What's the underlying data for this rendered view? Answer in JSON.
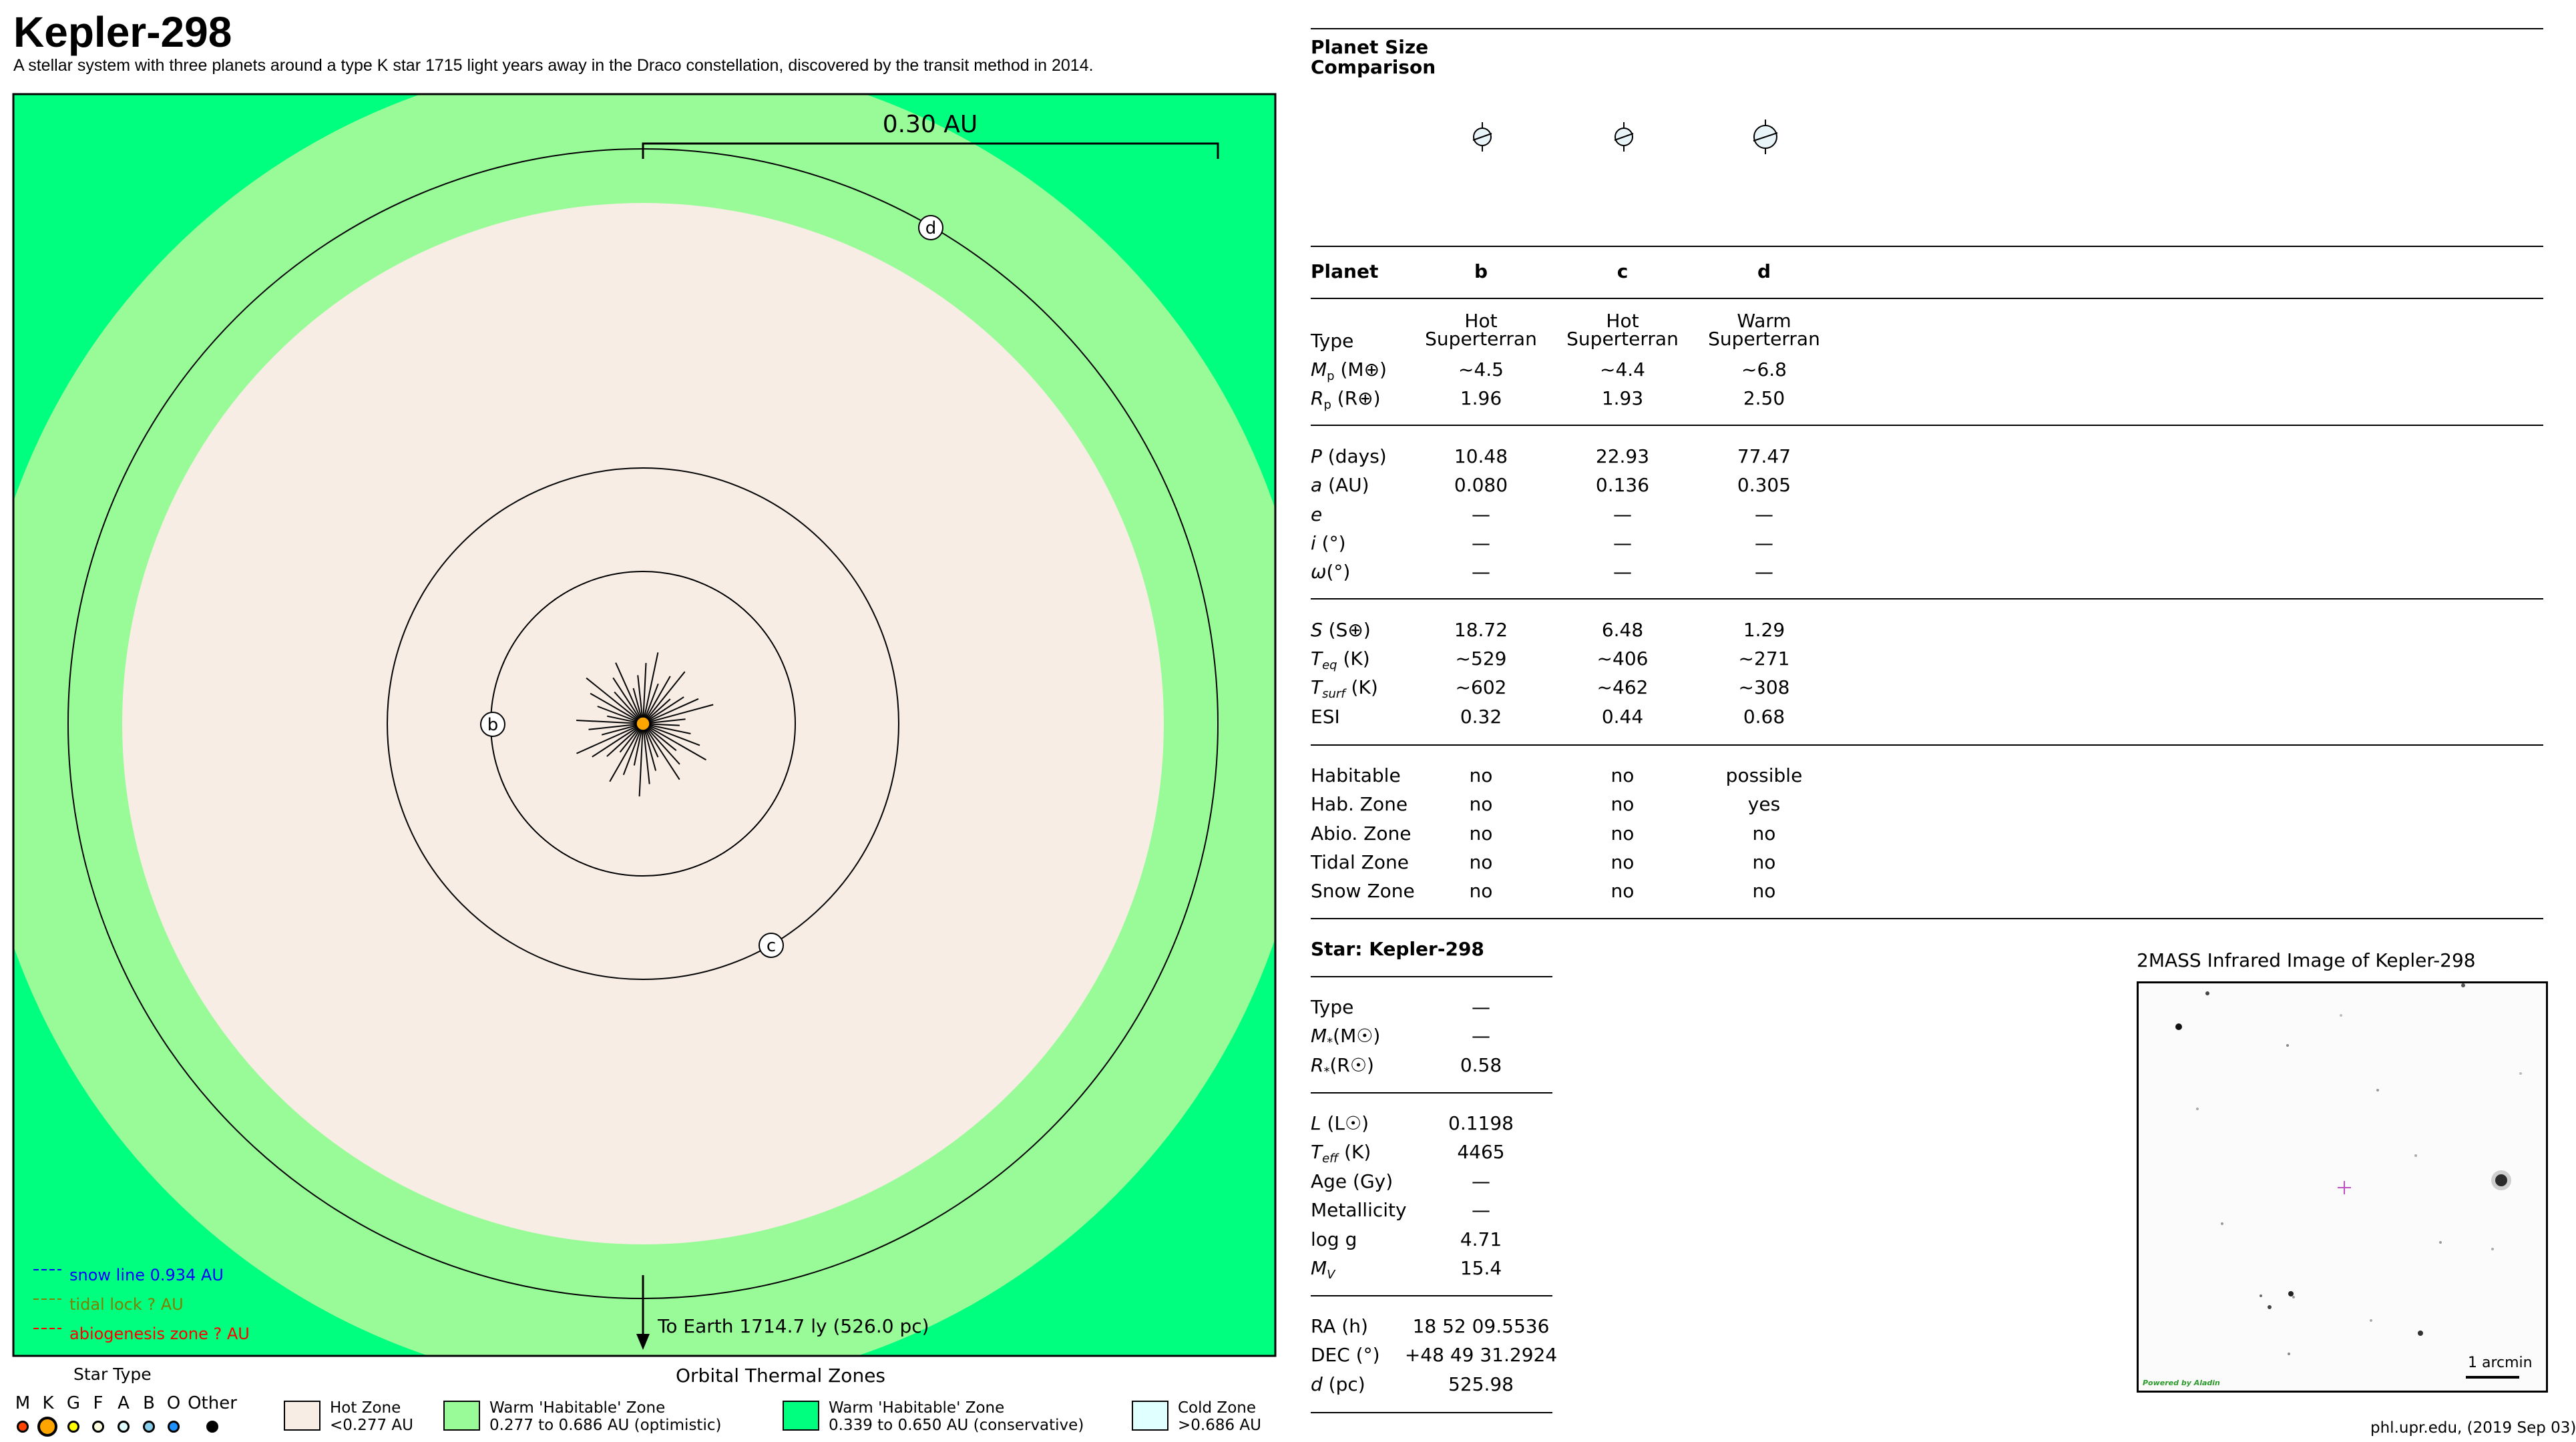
{
  "title": "Kepler-298",
  "subtitle": "A stellar system with three planets around a type K star 1715 light years away in the Draco constellation, discovered by the transit method in 2014.",
  "orbit_diagram": {
    "scale_label": "0.30 AU",
    "earth_direction": "To Earth 1714.7 ly (526.0 pc)",
    "planets": [
      {
        "label": "b",
        "a_au": 0.08
      },
      {
        "label": "c",
        "a_au": 0.136
      },
      {
        "label": "d",
        "a_au": 0.305
      }
    ],
    "lines_legend": [
      {
        "label": "snow line 0.934 AU",
        "color": "#0000ff"
      },
      {
        "label": "tidal lock ? AU",
        "color": "#808000"
      },
      {
        "label": "abiogenesis zone ? AU",
        "color": "#ff0000"
      }
    ],
    "colors": {
      "hot": "#f8ede4",
      "optimistic": "#98fb98",
      "conservative": "#00ff7f",
      "cold": "#e0ffff",
      "star": "#ffa500"
    }
  },
  "star_type_legend": {
    "title": "Star Type",
    "types": [
      {
        "label": "M",
        "color": "#ff4500"
      },
      {
        "label": "K",
        "color": "#ffa500",
        "selected": true
      },
      {
        "label": "G",
        "color": "#ffff00"
      },
      {
        "label": "F",
        "color": "#ffffe0"
      },
      {
        "label": "A",
        "color": "#e0ffff"
      },
      {
        "label": "B",
        "color": "#87ceeb"
      },
      {
        "label": "O",
        "color": "#1e90ff"
      },
      {
        "label": "Other",
        "color": "#000000"
      }
    ]
  },
  "zones_legend": {
    "title": "Orbital Thermal Zones",
    "zones": [
      {
        "name": "Hot Zone",
        "range": "<0.277 AU",
        "color": "#f8ede4"
      },
      {
        "name": "Warm 'Habitable' Zone",
        "range": "0.277 to 0.686 AU (optimistic)",
        "color": "#98fb98"
      },
      {
        "name": "Warm 'Habitable' Zone",
        "range": "0.339 to 0.650 AU (conservative)",
        "color": "#00ff7f"
      },
      {
        "name": "Cold Zone",
        "range": ">0.686 AU",
        "color": "#e0ffff"
      }
    ]
  },
  "size_comparison": {
    "title_line1": "Planet Size",
    "title_line2": "Comparison",
    "planet_radii": [
      1.96,
      1.93,
      2.5
    ]
  },
  "planet_table": {
    "header": {
      "label": "Planet",
      "cols": [
        "b",
        "c",
        "d"
      ]
    },
    "type": {
      "label": "Type",
      "line1": [
        "Hot",
        "Hot",
        "Warm"
      ],
      "line2": [
        "Superterran",
        "Superterran",
        "Superterran"
      ]
    },
    "mass": {
      "sym": "M",
      "sub": "p",
      "unit": " (M⊕)",
      "values": [
        "~4.5",
        "~4.4",
        "~6.8"
      ]
    },
    "radius": {
      "sym": "R",
      "sub": "p",
      "unit": " (R⊕)",
      "values": [
        "1.96",
        "1.93",
        "2.50"
      ]
    },
    "period": {
      "sym": "P",
      "unit": " (days)",
      "values": [
        "10.48",
        "22.93",
        "77.47"
      ]
    },
    "sma": {
      "sym": "a",
      "unit": " (AU)",
      "values": [
        "0.080",
        "0.136",
        "0.305"
      ]
    },
    "ecc": {
      "sym": "e",
      "unit": "",
      "values": [
        "—",
        "—",
        "—"
      ]
    },
    "inc": {
      "sym": "i",
      "unit": " (°)",
      "values": [
        "—",
        "—",
        "—"
      ]
    },
    "omega": {
      "sym": "ω",
      "unit": "(°)",
      "values": [
        "—",
        "—",
        "—"
      ]
    },
    "flux": {
      "sym": "S",
      "unit": " (S⊕)",
      "values": [
        "18.72",
        "6.48",
        "1.29"
      ]
    },
    "teq": {
      "sym": "T",
      "sub": "eq",
      "unit": " (K)",
      "values": [
        "~529",
        "~406",
        "~271"
      ]
    },
    "tsurf": {
      "sym": "T",
      "sub": "surf",
      "unit": " (K)",
      "values": [
        "~602",
        "~462",
        "~308"
      ]
    },
    "esi": {
      "label": "ESI",
      "values": [
        "0.32",
        "0.44",
        "0.68"
      ]
    },
    "habitable": {
      "label": "Habitable",
      "values": [
        "no",
        "no",
        "possible"
      ]
    },
    "hab_zone": {
      "label": "Hab. Zone",
      "values": [
        "no",
        "no",
        "yes"
      ]
    },
    "abio_zone": {
      "label": "Abio. Zone",
      "values": [
        "no",
        "no",
        "no"
      ]
    },
    "tidal_zone": {
      "label": "Tidal Zone",
      "values": [
        "no",
        "no",
        "no"
      ]
    },
    "snow_zone": {
      "label": "Snow Zone",
      "values": [
        "no",
        "no",
        "no"
      ]
    }
  },
  "star_table": {
    "header": "Star: Kepler-298",
    "type": {
      "label": "Type",
      "value": "—"
    },
    "mass": {
      "sym": "M",
      "sub": "*",
      "unit": "(M☉)",
      "value": "—"
    },
    "radius": {
      "sym": "R",
      "sub": "*",
      "unit": "(R☉)",
      "value": "0.58"
    },
    "lum": {
      "sym": "L",
      "unit": " (L☉)",
      "value": "0.1198"
    },
    "teff": {
      "sym": "T",
      "sub": "eff",
      "unit": " (K)",
      "value": "4465"
    },
    "age": {
      "label": "Age (Gy)",
      "value": "—"
    },
    "metal": {
      "label": "Metallicity",
      "value": "—"
    },
    "logg": {
      "label": "log g",
      "value": "4.71"
    },
    "mv": {
      "sym": "M",
      "sub": "V",
      "unit": "",
      "value": "15.4"
    },
    "ra": {
      "label": "RA (h)",
      "value": "18 52 09.5536"
    },
    "dec": {
      "label": "DEC (°)",
      "value": "+48 49 31.2924"
    },
    "dist": {
      "sym": "d",
      "unit": " (pc)",
      "value": "525.98"
    }
  },
  "tmass": {
    "title": "2MASS Infrared Image of Kepler-298",
    "scale": "1 arcmin",
    "credit": "Powered by Aladin"
  },
  "footer": "phl.upr.edu, (2019 Sep 03)"
}
